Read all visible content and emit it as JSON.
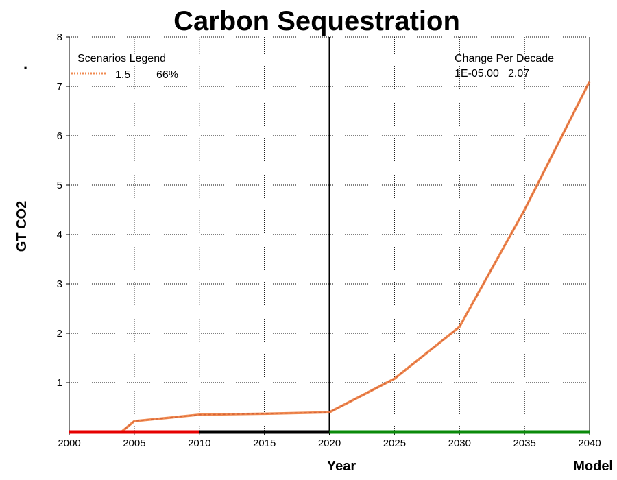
{
  "page": {
    "dot": "."
  },
  "colors": {
    "scenario_line": "#f08a50",
    "scenario_line_dark": "#d6653a",
    "green_text": "#0a8a0a",
    "red_text": "#e60000",
    "bar_red": "#e60000",
    "bar_black": "#000000",
    "bar_green": "#0a8a0a"
  },
  "chart_data": {
    "type": "line",
    "title": "Carbon Sequestration",
    "xlabel": "Year",
    "ylabel": "GT CO2",
    "corner_label": "Model",
    "xlim": [
      2000,
      2040
    ],
    "ylim": [
      0,
      8
    ],
    "x_ticks": [
      "2000",
      "2005",
      "2010",
      "2015",
      "2020",
      "2025",
      "2030",
      "2035",
      "2040"
    ],
    "y_ticks": [
      "1",
      "2",
      "3",
      "4",
      "5",
      "6",
      "7",
      "8"
    ],
    "grid": true,
    "vertical_marker_x": 2020,
    "series": [
      {
        "name": "1.5",
        "x": [
          2004,
          2005,
          2010,
          2015,
          2020,
          2025,
          2030,
          2035,
          2040
        ],
        "y": [
          0.0,
          0.22,
          0.35,
          0.37,
          0.4,
          1.08,
          2.13,
          4.5,
          7.1
        ]
      }
    ],
    "baseline_segments": [
      {
        "from": 2000,
        "to": 2010,
        "color": "red"
      },
      {
        "from": 2010,
        "to": 2020,
        "color": "black"
      },
      {
        "from": 2020,
        "to": 2040,
        "color": "green"
      }
    ],
    "legend": {
      "title": "Scenarios Legend",
      "position": "top-left",
      "entries": [
        {
          "label": "1.5",
          "value": "66%"
        }
      ]
    },
    "change_panel": {
      "title": "Change Per Decade",
      "position": "top-right",
      "value_green": "1E-05.00",
      "value_red": "2.07"
    }
  }
}
